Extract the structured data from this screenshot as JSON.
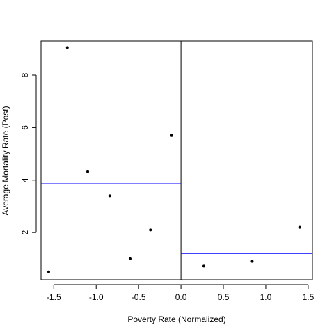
{
  "chart_data": {
    "type": "scatter",
    "title": "",
    "xlabel": "Poverty Rate (Normalized)",
    "ylabel": "Average Mortality Rate (Post)",
    "xlim": [
      -1.65,
      1.55
    ],
    "ylim": [
      0.2,
      9.3
    ],
    "x_ticks": [
      -1.5,
      -1.0,
      -0.5,
      0.0,
      0.5,
      1.0,
      1.5
    ],
    "x_tick_labels": [
      "-1.5",
      "-1.0",
      "-0.5",
      "0.0",
      "0.5",
      "1.0",
      "1.5"
    ],
    "y_ticks": [
      2,
      4,
      6,
      8
    ],
    "y_tick_labels": [
      "2",
      "4",
      "6",
      "8"
    ],
    "grid": false,
    "points": [
      {
        "x": -1.56,
        "y": 0.5
      },
      {
        "x": -1.34,
        "y": 9.05
      },
      {
        "x": -1.1,
        "y": 4.32
      },
      {
        "x": -0.84,
        "y": 3.4
      },
      {
        "x": -0.6,
        "y": 1.0
      },
      {
        "x": -0.36,
        "y": 2.1
      },
      {
        "x": -0.11,
        "y": 5.7
      },
      {
        "x": 0.27,
        "y": 0.72
      },
      {
        "x": 0.84,
        "y": 0.9
      },
      {
        "x": 1.4,
        "y": 2.2
      }
    ],
    "cutoff": 0.0,
    "segments": [
      {
        "name": "left-mean",
        "x_from": -1.65,
        "x_to": 0.0,
        "y": 3.86,
        "color": "#0000ff"
      },
      {
        "name": "right-mean",
        "x_from": 0.0,
        "x_to": 1.55,
        "y": 1.2,
        "color": "#0000ff"
      }
    ],
    "colors": {
      "points": "#000000",
      "axes": "#000000",
      "mean_lines": "#0000ff"
    }
  }
}
